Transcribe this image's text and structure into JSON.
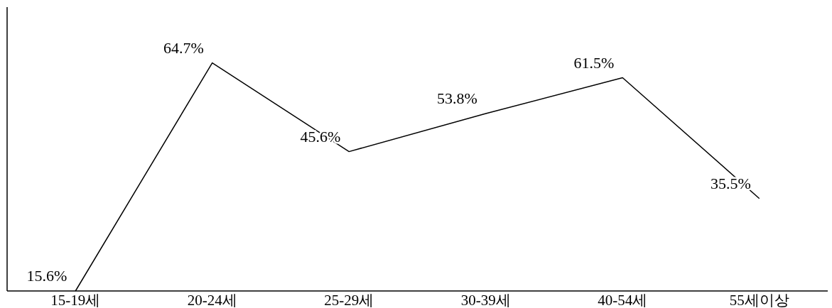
{
  "chart_data": {
    "type": "line",
    "categories": [
      "15-19세",
      "20-24세",
      "25-29세",
      "30-39세",
      "40-54세",
      "55세이상"
    ],
    "series": [
      {
        "color": "#000000",
        "values": [
          15.6,
          64.7,
          45.6,
          53.8,
          61.5,
          35.5
        ],
        "value_labels": [
          "15.6%",
          "64.7%",
          "45.6%",
          "53.8%",
          "61.5%",
          "35.5%"
        ]
      }
    ]
  }
}
